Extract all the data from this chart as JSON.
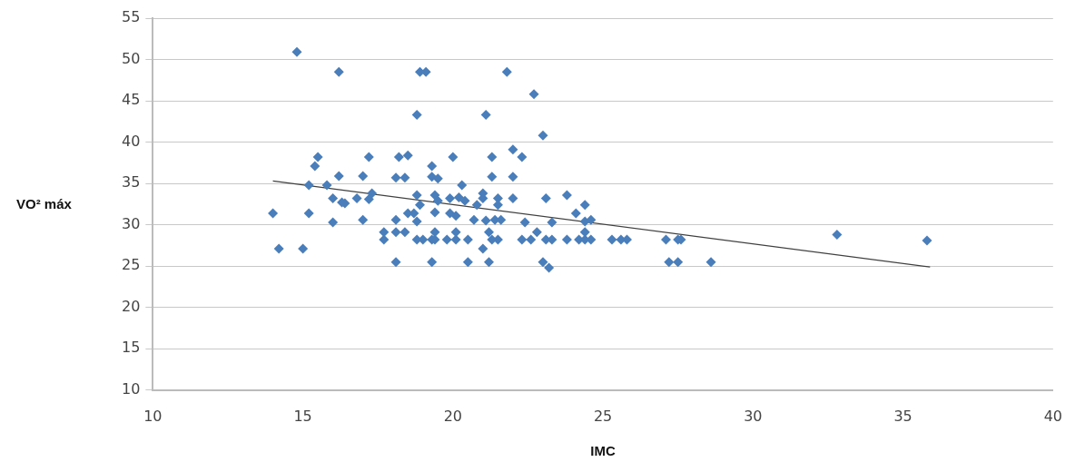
{
  "chart_data": {
    "type": "scatter",
    "xlabel": "IMC",
    "ylabel": "VO² máx",
    "marker": "diamond",
    "grid": "y",
    "legend": false,
    "xlim": [
      10,
      40
    ],
    "xticks": [
      10,
      15,
      20,
      25,
      30,
      35,
      40
    ],
    "ylim": [
      10,
      55
    ],
    "yticks": [
      10,
      15,
      20,
      25,
      30,
      35,
      40,
      45,
      50,
      55
    ],
    "series": [
      {
        "color": "#4a7ebb",
        "x": [
          14.0,
          14.2,
          14.8,
          15.0,
          15.2,
          15.2,
          15.4,
          15.5,
          15.8,
          16.0,
          16.0,
          16.2,
          16.2,
          16.3,
          16.4,
          16.8,
          17.0,
          17.0,
          17.2,
          17.2,
          17.3,
          17.7,
          17.7,
          18.1,
          18.1,
          18.1,
          18.1,
          18.2,
          18.5,
          18.4,
          18.4,
          18.5,
          18.7,
          18.8,
          18.8,
          18.8,
          18.8,
          18.9,
          19.1,
          18.9,
          19.0,
          19.3,
          19.3,
          19.3,
          19.3,
          19.4,
          19.4,
          19.4,
          19.4,
          19.5,
          19.5,
          19.8,
          19.9,
          19.9,
          20.0,
          20.1,
          20.1,
          20.1,
          20.2,
          20.3,
          20.4,
          20.5,
          20.5,
          20.7,
          20.8,
          21.0,
          21.0,
          21.0,
          21.1,
          21.1,
          21.2,
          21.2,
          21.3,
          21.3,
          21.3,
          21.4,
          21.5,
          21.5,
          21.5,
          21.6,
          21.8,
          22.0,
          22.0,
          22.0,
          22.3,
          22.3,
          22.4,
          22.6,
          22.7,
          22.8,
          23.0,
          23.0,
          23.1,
          23.1,
          23.2,
          23.3,
          23.3,
          23.8,
          23.8,
          24.1,
          24.2,
          24.4,
          24.4,
          24.4,
          24.4,
          24.6,
          24.6,
          25.3,
          25.6,
          25.8,
          27.1,
          27.2,
          27.5,
          27.6,
          27.5,
          28.6,
          32.8,
          35.8
        ],
        "values": [
          31.4,
          27.1,
          50.9,
          27.1,
          34.8,
          31.4,
          37.1,
          38.2,
          34.8,
          30.3,
          33.2,
          35.9,
          48.5,
          32.7,
          32.6,
          33.2,
          35.9,
          30.6,
          33.1,
          38.2,
          33.8,
          29.1,
          28.2,
          25.5,
          29.1,
          30.6,
          35.7,
          38.2,
          38.4,
          35.7,
          29.1,
          31.4,
          31.4,
          28.2,
          30.4,
          33.6,
          43.3,
          48.5,
          48.5,
          32.4,
          28.2,
          28.2,
          25.5,
          37.1,
          35.8,
          33.6,
          31.5,
          29.1,
          28.2,
          35.6,
          32.9,
          28.2,
          31.4,
          33.2,
          38.2,
          31.1,
          28.2,
          29.1,
          33.3,
          34.8,
          32.9,
          25.5,
          28.2,
          30.6,
          32.4,
          33.2,
          27.1,
          33.8,
          30.5,
          43.3,
          29.1,
          25.5,
          28.2,
          38.2,
          35.8,
          30.6,
          33.2,
          32.4,
          28.2,
          30.6,
          48.5,
          33.2,
          35.8,
          39.1,
          38.2,
          28.2,
          30.3,
          28.2,
          45.8,
          29.1,
          40.8,
          25.5,
          33.2,
          28.2,
          24.8,
          28.2,
          30.3,
          33.6,
          28.2,
          31.4,
          28.2,
          28.2,
          32.4,
          30.4,
          29.1,
          30.6,
          28.2,
          28.2,
          28.2,
          28.2,
          28.2,
          25.5,
          28.2,
          28.2,
          25.5,
          25.5,
          28.8,
          28.1
        ]
      },
      {
        "type": "line",
        "color": "#404040",
        "marker": "none",
        "x": [
          14.0,
          35.9
        ],
        "values": [
          35.3,
          24.9
        ]
      }
    ]
  }
}
